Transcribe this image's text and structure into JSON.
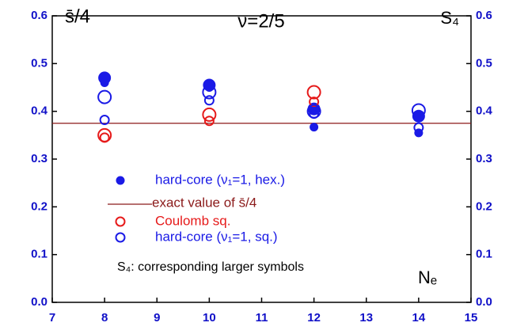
{
  "chart_data": {
    "type": "scatter",
    "title": "ν=2/5",
    "y_label": "s̄/4",
    "y2_label": "S₄",
    "x_label": "Nₑ",
    "annotation": "S₄: corresponding larger symbols",
    "xlim": [
      7,
      15
    ],
    "xticks": [
      7,
      8,
      9,
      10,
      11,
      12,
      13,
      14,
      15
    ],
    "ylim": [
      0,
      0.6
    ],
    "yticks": [
      {
        "value": 0,
        "label": "0.0"
      },
      0.1,
      0.2,
      0.3,
      0.4,
      0.5,
      0.6
    ],
    "y2lim": [
      0,
      0.6
    ],
    "y2ticks": [
      {
        "value": 0,
        "label": "0.0"
      },
      0.1,
      0.2,
      0.3,
      0.4,
      0.5,
      0.6
    ],
    "reference_line": {
      "name": "exact value of s̄/4",
      "value": 0.375,
      "color": "#8b1a1a"
    },
    "series": [
      {
        "name": "hard-core (ν₁=1, hex.)",
        "color": "#1a1ae6",
        "filled": true,
        "x": [
          8,
          10,
          12,
          14
        ],
        "values": [
          0.46,
          0.45,
          0.367,
          0.355
        ],
        "large_values": [
          0.47,
          0.455,
          0.405,
          0.39
        ]
      },
      {
        "name": "Coulomb sq.",
        "color": "#e61a1a",
        "filled": false,
        "x": [
          8,
          10,
          12
        ],
        "values": [
          0.345,
          0.38,
          0.42
        ],
        "large_values": [
          0.35,
          0.393,
          0.44
        ]
      },
      {
        "name": "hard-core (ν₁=1, sq.)",
        "color": "#1a1ae6",
        "filled": false,
        "x": [
          8,
          10,
          12,
          14
        ],
        "values": [
          0.382,
          0.423,
          0.395,
          0.366
        ],
        "large_values": [
          0.43,
          0.44,
          0.4,
          0.402
        ]
      }
    ]
  }
}
